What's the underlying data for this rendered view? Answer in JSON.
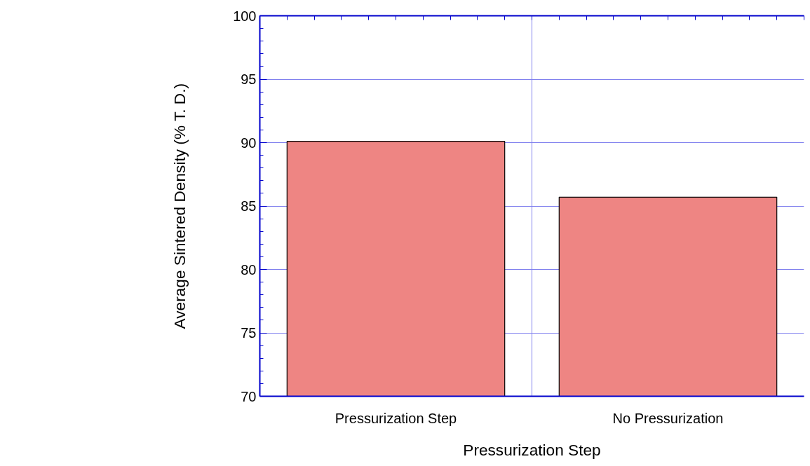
{
  "chart_data": {
    "type": "bar",
    "xlabel": "Pressurization Step",
    "ylabel": "Average Sintered Density (% T. D.)",
    "categories": [
      "Pressurization Step",
      "No Pressurization"
    ],
    "values": [
      90.1,
      85.7
    ],
    "color": "#ee8583",
    "ylim": [
      70,
      100
    ],
    "yticks": [
      70,
      75,
      80,
      85,
      90,
      95,
      100
    ],
    "grid": true
  }
}
